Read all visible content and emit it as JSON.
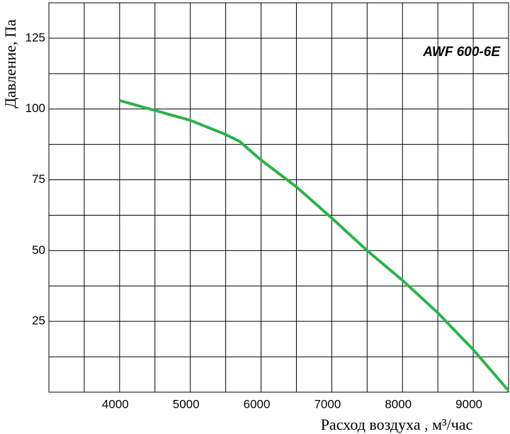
{
  "chart_data": {
    "type": "line",
    "x_label": "Расход воздуха , м³/час",
    "y_label": "Давление, Па",
    "annotation": "AWF 600-6E",
    "x": [
      4000,
      4500,
      5000,
      5500,
      5700,
      6000,
      6500,
      7000,
      7500,
      8000,
      8500,
      9000,
      9500
    ],
    "series": [
      {
        "name": "AWF 600-6E",
        "color": "#2db24a",
        "values": [
          103,
          99.5,
          96,
          91,
          88.5,
          82,
          72.5,
          61.5,
          50,
          39.5,
          28,
          15,
          0.5
        ]
      }
    ],
    "xlim": [
      3000,
      9500
    ],
    "xticks": [
      4000,
      5000,
      6000,
      7000,
      8000,
      9000
    ],
    "x_minor_grid": [
      3500,
      4500,
      5500,
      6500,
      7500,
      8500
    ],
    "ylim": [
      0,
      137.5
    ],
    "yticks": [
      25,
      50,
      75,
      100,
      125
    ],
    "y_minor_grid": [
      12.5,
      37.5,
      62.5,
      87.5,
      112.5
    ],
    "grid": true
  }
}
